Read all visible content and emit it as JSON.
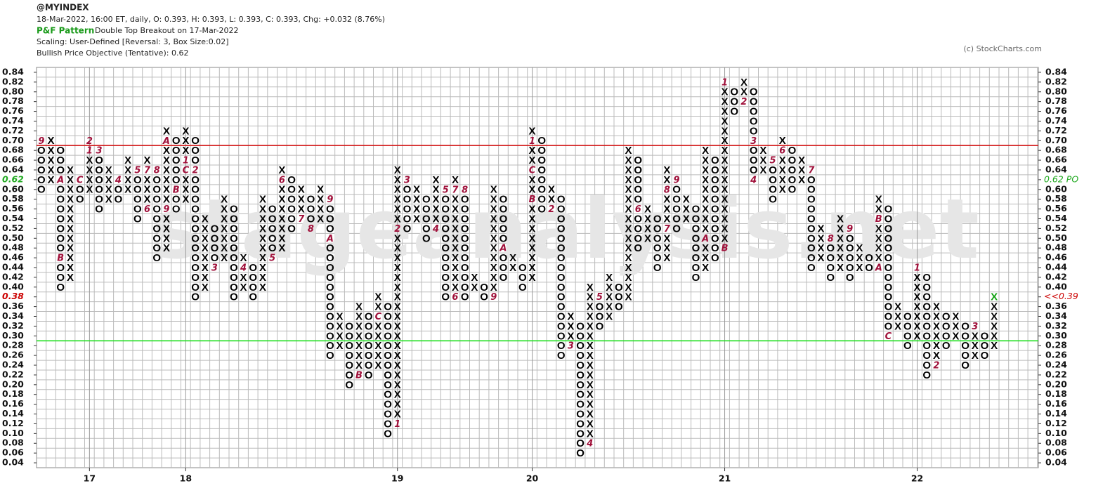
{
  "chart_data": {
    "type": "pnf",
    "symbol": "@MYINDEX",
    "quote": "18-Mar-2022, 16:00 ET, daily, O: 0.393, H: 0.393, L: 0.393, C: 0.393, Chg: +0.032 (8.76%)",
    "pattern_label": "P&F Pattern",
    "pattern": "Double Top Breakout on 17-Mar-2022",
    "scaling": "Scaling: User-Defined [Reversal: 3, Box Size:0.02]",
    "objective": "Bullish Price Objective (Tentative): 0.62",
    "copyright": "(c) StockCharts.com",
    "watermark": "stageanalysis.net",
    "box_size": 0.02,
    "ylim": [
      0.03,
      0.85
    ],
    "yticks": [
      0.84,
      0.82,
      {
        "value": 0.8,
        "label": "0.80"
      },
      0.78,
      0.76,
      0.74,
      0.72,
      {
        "value": 0.7,
        "label": "0.70"
      },
      0.68,
      0.66,
      0.64,
      {
        "value": 0.62,
        "label": "0.62",
        "color": "#22aa22"
      },
      {
        "value": 0.6,
        "label": "0.60"
      },
      0.58,
      0.56,
      0.54,
      0.52,
      {
        "value": 0.5,
        "label": "0.50"
      },
      0.48,
      0.46,
      0.44,
      0.42,
      {
        "value": 0.4,
        "label": "0.40"
      },
      {
        "value": 0.38,
        "label": "0.38",
        "color": "#cc0000"
      },
      0.36,
      0.34,
      0.32,
      {
        "value": 0.3,
        "label": "0.30"
      },
      0.28,
      0.26,
      0.24,
      0.22,
      {
        "value": 0.2,
        "label": "0.20"
      },
      0.18,
      0.16,
      0.14,
      0.12,
      {
        "value": 0.1,
        "label": "0.10"
      },
      0.08,
      0.06,
      0.04
    ],
    "right_labels": [
      {
        "value": 0.62,
        "label": "0.62 PO",
        "color": "#22aa22"
      },
      {
        "value": 0.38,
        "label": "<<0.39",
        "color": "#cc0000"
      }
    ],
    "lines": [
      {
        "value": 0.69,
        "color": "#d42020"
      },
      {
        "value": 0.29,
        "color": "#22e022"
      }
    ],
    "x_color": "#000000",
    "o_color": "#000000",
    "marker_color": "#a0103a",
    "last_box_color": "#10a010",
    "years": [
      {
        "column": 5,
        "label": "17"
      },
      {
        "column": 15,
        "label": "18"
      },
      {
        "column": 37,
        "label": "19"
      },
      {
        "column": 51,
        "label": "20"
      },
      {
        "column": 71,
        "label": "21"
      },
      {
        "column": 91,
        "label": "22"
      }
    ],
    "columns": [
      {
        "type": "O",
        "low": 0.6,
        "high": 0.7
      },
      {
        "type": "X",
        "low": 0.62,
        "high": 0.7
      },
      {
        "type": "O",
        "low": 0.4,
        "high": 0.68
      },
      {
        "type": "X",
        "low": 0.42,
        "high": 0.64
      },
      {
        "type": "O",
        "low": 0.58,
        "high": 0.62
      },
      {
        "type": "X",
        "low": 0.6,
        "high": 0.7
      },
      {
        "type": "O",
        "low": 0.56,
        "high": 0.68
      },
      {
        "type": "X",
        "low": 0.58,
        "high": 0.64
      },
      {
        "type": "O",
        "low": 0.58,
        "high": 0.62
      },
      {
        "type": "X",
        "low": 0.6,
        "high": 0.66
      },
      {
        "type": "O",
        "low": 0.54,
        "high": 0.64
      },
      {
        "type": "X",
        "low": 0.56,
        "high": 0.66
      },
      {
        "type": "O",
        "low": 0.46,
        "high": 0.64
      },
      {
        "type": "X",
        "low": 0.48,
        "high": 0.72
      },
      {
        "type": "O",
        "low": 0.56,
        "high": 0.7
      },
      {
        "type": "X",
        "low": 0.58,
        "high": 0.72
      },
      {
        "type": "O",
        "low": 0.38,
        "high": 0.7
      },
      {
        "type": "X",
        "low": 0.4,
        "high": 0.54
      },
      {
        "type": "O",
        "low": 0.44,
        "high": 0.52
      },
      {
        "type": "X",
        "low": 0.46,
        "high": 0.58
      },
      {
        "type": "O",
        "low": 0.38,
        "high": 0.56
      },
      {
        "type": "X",
        "low": 0.4,
        "high": 0.46
      },
      {
        "type": "O",
        "low": 0.38,
        "high": 0.44
      },
      {
        "type": "X",
        "low": 0.4,
        "high": 0.58
      },
      {
        "type": "O",
        "low": 0.46,
        "high": 0.56
      },
      {
        "type": "X",
        "low": 0.48,
        "high": 0.64
      },
      {
        "type": "O",
        "low": 0.52,
        "high": 0.62
      },
      {
        "type": "X",
        "low": 0.54,
        "high": 0.6
      },
      {
        "type": "O",
        "low": 0.52,
        "high": 0.58
      },
      {
        "type": "X",
        "low": 0.54,
        "high": 0.6
      },
      {
        "type": "O",
        "low": 0.26,
        "high": 0.58
      },
      {
        "type": "X",
        "low": 0.28,
        "high": 0.34
      },
      {
        "type": "O",
        "low": 0.2,
        "high": 0.32
      },
      {
        "type": "X",
        "low": 0.22,
        "high": 0.36
      },
      {
        "type": "O",
        "low": 0.22,
        "high": 0.34
      },
      {
        "type": "X",
        "low": 0.24,
        "high": 0.38
      },
      {
        "type": "O",
        "low": 0.1,
        "high": 0.36
      },
      {
        "type": "X",
        "low": 0.12,
        "high": 0.64
      },
      {
        "type": "O",
        "low": 0.52,
        "high": 0.62
      },
      {
        "type": "X",
        "low": 0.54,
        "high": 0.6
      },
      {
        "type": "O",
        "low": 0.5,
        "high": 0.58
      },
      {
        "type": "X",
        "low": 0.52,
        "high": 0.62
      },
      {
        "type": "O",
        "low": 0.38,
        "high": 0.6
      },
      {
        "type": "X",
        "low": 0.38,
        "high": 0.62
      },
      {
        "type": "O",
        "low": 0.38,
        "high": 0.6
      },
      {
        "type": "X",
        "low": 0.4,
        "high": 0.42
      },
      {
        "type": "O",
        "low": 0.38,
        "high": 0.4
      },
      {
        "type": "X",
        "low": 0.38,
        "high": 0.6
      },
      {
        "type": "O",
        "low": 0.42,
        "high": 0.58
      },
      {
        "type": "X",
        "low": 0.44,
        "high": 0.46
      },
      {
        "type": "O",
        "low": 0.4,
        "high": 0.44
      },
      {
        "type": "X",
        "low": 0.42,
        "high": 0.72
      },
      {
        "type": "O",
        "low": 0.56,
        "high": 0.7
      },
      {
        "type": "X",
        "low": 0.56,
        "high": 0.6
      },
      {
        "type": "O",
        "low": 0.26,
        "high": 0.58
      },
      {
        "type": "X",
        "low": 0.28,
        "high": 0.34
      },
      {
        "type": "O",
        "low": 0.06,
        "high": 0.32
      },
      {
        "type": "X",
        "low": 0.08,
        "high": 0.4
      },
      {
        "type": "O",
        "low": 0.32,
        "high": 0.38
      },
      {
        "type": "X",
        "low": 0.34,
        "high": 0.42
      },
      {
        "type": "O",
        "low": 0.36,
        "high": 0.4
      },
      {
        "type": "X",
        "low": 0.38,
        "high": 0.68
      },
      {
        "type": "O",
        "low": 0.48,
        "high": 0.66
      },
      {
        "type": "X",
        "low": 0.5,
        "high": 0.56
      },
      {
        "type": "O",
        "low": 0.44,
        "high": 0.54
      },
      {
        "type": "X",
        "low": 0.46,
        "high": 0.64
      },
      {
        "type": "O",
        "low": 0.52,
        "high": 0.62
      },
      {
        "type": "X",
        "low": 0.54,
        "high": 0.58
      },
      {
        "type": "O",
        "low": 0.42,
        "high": 0.56
      },
      {
        "type": "X",
        "low": 0.44,
        "high": 0.68
      },
      {
        "type": "O",
        "low": 0.46,
        "high": 0.66
      },
      {
        "type": "X",
        "low": 0.48,
        "high": 0.82
      },
      {
        "type": "O",
        "low": 0.76,
        "high": 0.8
      },
      {
        "type": "X",
        "low": 0.78,
        "high": 0.82
      },
      {
        "type": "O",
        "low": 0.62,
        "high": 0.8
      },
      {
        "type": "X",
        "low": 0.64,
        "high": 0.68
      },
      {
        "type": "O",
        "low": 0.58,
        "high": 0.66
      },
      {
        "type": "X",
        "low": 0.6,
        "high": 0.7
      },
      {
        "type": "O",
        "low": 0.6,
        "high": 0.68
      },
      {
        "type": "X",
        "low": 0.62,
        "high": 0.66
      },
      {
        "type": "O",
        "low": 0.44,
        "high": 0.64
      },
      {
        "type": "X",
        "low": 0.46,
        "high": 0.52
      },
      {
        "type": "O",
        "low": 0.42,
        "high": 0.5
      },
      {
        "type": "X",
        "low": 0.44,
        "high": 0.54
      },
      {
        "type": "O",
        "low": 0.42,
        "high": 0.52
      },
      {
        "type": "X",
        "low": 0.44,
        "high": 0.48
      },
      {
        "type": "O",
        "low": 0.44,
        "high": 0.46
      },
      {
        "type": "X",
        "low": 0.44,
        "high": 0.58
      },
      {
        "type": "O",
        "low": 0.3,
        "high": 0.56
      },
      {
        "type": "X",
        "low": 0.32,
        "high": 0.36
      },
      {
        "type": "O",
        "low": 0.28,
        "high": 0.34
      },
      {
        "type": "X",
        "low": 0.3,
        "high": 0.44
      },
      {
        "type": "O",
        "low": 0.22,
        "high": 0.42
      },
      {
        "type": "X",
        "low": 0.24,
        "high": 0.36
      },
      {
        "type": "O",
        "low": 0.28,
        "high": 0.34
      },
      {
        "type": "X",
        "low": 0.3,
        "high": 0.34
      },
      {
        "type": "O",
        "low": 0.24,
        "high": 0.32
      },
      {
        "type": "X",
        "low": 0.26,
        "high": 0.32
      },
      {
        "type": "O",
        "low": 0.26,
        "high": 0.3
      },
      {
        "type": "X",
        "low": 0.28,
        "high": 0.38
      }
    ],
    "markers": [
      {
        "column": 0,
        "value": 0.7,
        "label": "9"
      },
      {
        "column": 2,
        "value": 0.46,
        "label": "B"
      },
      {
        "column": 2,
        "value": 0.62,
        "label": "A"
      },
      {
        "column": 4,
        "value": 0.62,
        "label": "C"
      },
      {
        "column": 5,
        "value": 0.68,
        "label": "1"
      },
      {
        "column": 5,
        "value": 0.7,
        "label": "2"
      },
      {
        "column": 6,
        "value": 0.68,
        "label": "3"
      },
      {
        "column": 8,
        "value": 0.62,
        "label": "4"
      },
      {
        "column": 10,
        "value": 0.64,
        "label": "5"
      },
      {
        "column": 11,
        "value": 0.56,
        "label": "6"
      },
      {
        "column": 11,
        "value": 0.64,
        "label": "7"
      },
      {
        "column": 12,
        "value": 0.64,
        "label": "8"
      },
      {
        "column": 13,
        "value": 0.56,
        "label": "9"
      },
      {
        "column": 13,
        "value": 0.7,
        "label": "A"
      },
      {
        "column": 14,
        "value": 0.6,
        "label": "B"
      },
      {
        "column": 15,
        "value": 0.64,
        "label": "C"
      },
      {
        "column": 15,
        "value": 0.66,
        "label": "1"
      },
      {
        "column": 16,
        "value": 0.64,
        "label": "2"
      },
      {
        "column": 18,
        "value": 0.44,
        "label": "3"
      },
      {
        "column": 21,
        "value": 0.44,
        "label": "4"
      },
      {
        "column": 24,
        "value": 0.46,
        "label": "5"
      },
      {
        "column": 25,
        "value": 0.62,
        "label": "6"
      },
      {
        "column": 27,
        "value": 0.54,
        "label": "7"
      },
      {
        "column": 28,
        "value": 0.52,
        "label": "8"
      },
      {
        "column": 30,
        "value": 0.58,
        "label": "9"
      },
      {
        "column": 30,
        "value": 0.5,
        "label": "A"
      },
      {
        "column": 33,
        "value": 0.22,
        "label": "B"
      },
      {
        "column": 35,
        "value": 0.34,
        "label": "C"
      },
      {
        "column": 37,
        "value": 0.12,
        "label": "1"
      },
      {
        "column": 37,
        "value": 0.52,
        "label": "2"
      },
      {
        "column": 38,
        "value": 0.62,
        "label": "3"
      },
      {
        "column": 41,
        "value": 0.52,
        "label": "4"
      },
      {
        "column": 42,
        "value": 0.6,
        "label": "5"
      },
      {
        "column": 43,
        "value": 0.38,
        "label": "6"
      },
      {
        "column": 43,
        "value": 0.6,
        "label": "7"
      },
      {
        "column": 44,
        "value": 0.6,
        "label": "8"
      },
      {
        "column": 47,
        "value": 0.38,
        "label": "9"
      },
      {
        "column": 48,
        "value": 0.48,
        "label": "A"
      },
      {
        "column": 51,
        "value": 0.58,
        "label": "B"
      },
      {
        "column": 51,
        "value": 0.64,
        "label": "C"
      },
      {
        "column": 51,
        "value": 0.7,
        "label": "1"
      },
      {
        "column": 53,
        "value": 0.56,
        "label": "2"
      },
      {
        "column": 55,
        "value": 0.28,
        "label": "3"
      },
      {
        "column": 57,
        "value": 0.08,
        "label": "4"
      },
      {
        "column": 58,
        "value": 0.38,
        "label": "5"
      },
      {
        "column": 62,
        "value": 0.56,
        "label": "6"
      },
      {
        "column": 65,
        "value": 0.52,
        "label": "7"
      },
      {
        "column": 65,
        "value": 0.6,
        "label": "8"
      },
      {
        "column": 66,
        "value": 0.62,
        "label": "9"
      },
      {
        "column": 69,
        "value": 0.5,
        "label": "A"
      },
      {
        "column": 71,
        "value": 0.48,
        "label": "B"
      },
      {
        "column": 71,
        "value": 0.82,
        "label": "1"
      },
      {
        "column": 73,
        "value": 0.78,
        "label": "2"
      },
      {
        "column": 74,
        "value": 0.7,
        "label": "3"
      },
      {
        "column": 74,
        "value": 0.62,
        "label": "4"
      },
      {
        "column": 76,
        "value": 0.66,
        "label": "5"
      },
      {
        "column": 77,
        "value": 0.68,
        "label": "6"
      },
      {
        "column": 80,
        "value": 0.64,
        "label": "7"
      },
      {
        "column": 82,
        "value": 0.5,
        "label": "8"
      },
      {
        "column": 84,
        "value": 0.52,
        "label": "9"
      },
      {
        "column": 87,
        "value": 0.44,
        "label": "A"
      },
      {
        "column": 87,
        "value": 0.54,
        "label": "B"
      },
      {
        "column": 88,
        "value": 0.3,
        "label": "C"
      },
      {
        "column": 91,
        "value": 0.44,
        "label": "1"
      },
      {
        "column": 93,
        "value": 0.24,
        "label": "2"
      },
      {
        "column": 97,
        "value": 0.32,
        "label": "3"
      }
    ]
  }
}
